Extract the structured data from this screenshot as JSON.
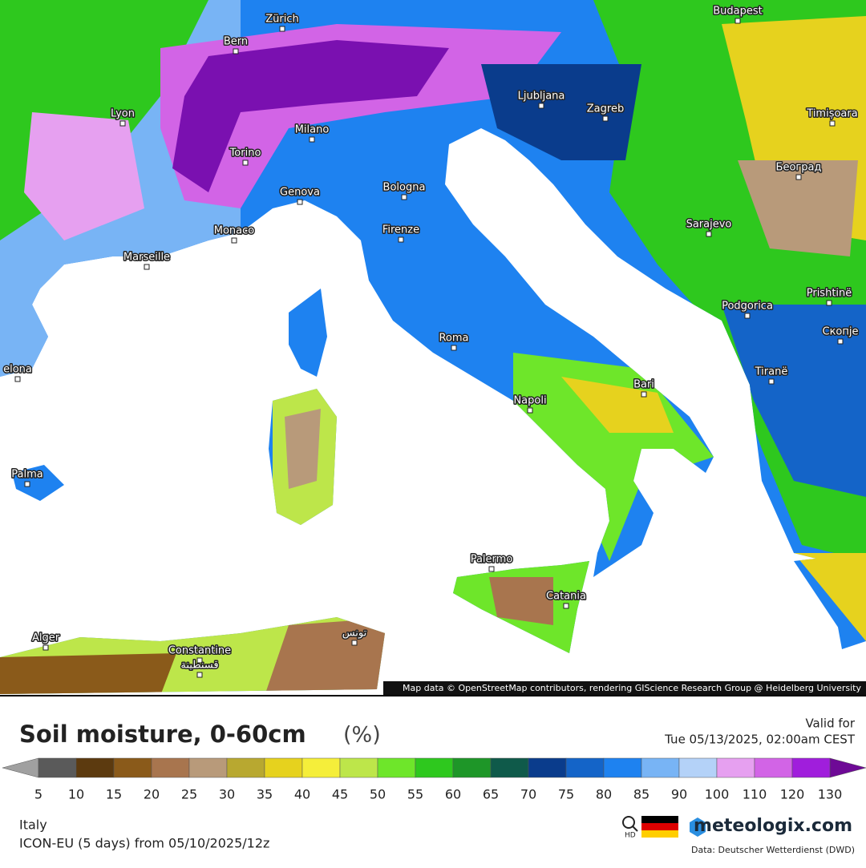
{
  "map": {
    "cities": [
      "Zürich",
      "Budapest",
      "Bern",
      "Lyon",
      "Milano",
      "Ljubljana",
      "Zagreb",
      "Timișoara",
      "Torino",
      "Београд",
      "Genova",
      "Bologna",
      "Firenze",
      "Sarajevo",
      "Monaco",
      "Marseille",
      "Prishtinë",
      "Podgorica",
      "Roma",
      "Скопје",
      "elona",
      "Tiranë",
      "Napoli",
      "Bari",
      "Palma",
      "Palermo",
      "Catania",
      "Alger",
      "تونس",
      "Constantine",
      "قسنطينة"
    ],
    "attribution": "Map data © OpenStreetMap contributors, rendering GIScience Research Group @ Heidelberg University"
  },
  "header": {
    "title": "Soil moisture, 0-60cm",
    "unit": "(%)",
    "valid_label": "Valid for",
    "valid_time": "Tue 05/13/2025, 02:00am CEST"
  },
  "legend": {
    "ticks": [
      5,
      10,
      15,
      20,
      25,
      30,
      35,
      40,
      45,
      50,
      55,
      60,
      65,
      70,
      75,
      80,
      85,
      90,
      100,
      110,
      120,
      130
    ],
    "colors": [
      "#5a5a5a",
      "#5c3a0f",
      "#8a5a1a",
      "#a8754e",
      "#b89a7a",
      "#b8a830",
      "#e6d21e",
      "#f5ee3a",
      "#bde64a",
      "#6ee62a",
      "#2ec81e",
      "#1e9628",
      "#0f5a4a",
      "#0a3c8c",
      "#1464c8",
      "#1e82f0",
      "#78b4f5",
      "#b4d2f8",
      "#e6a0f0",
      "#d264e6",
      "#a01edc"
    ],
    "under_color": "#a0a0a0",
    "over_color": "#6e0a96"
  },
  "footer": {
    "region": "Italy",
    "model": "ICON-EU (5 days) from 05/10/2025/12z",
    "hd": "HD",
    "brand": "meteologix.com",
    "source": "Data: Deutscher Wetterdienst (DWD)"
  }
}
